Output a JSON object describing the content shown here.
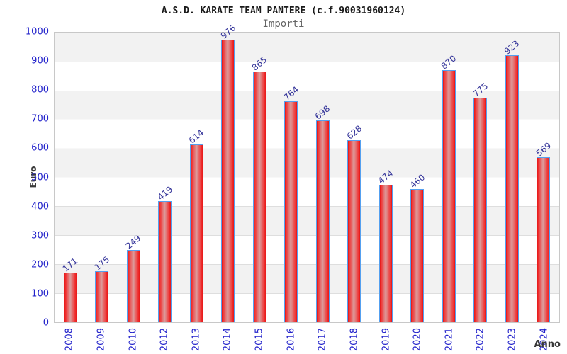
{
  "chart_data": {
    "type": "bar",
    "title": "A.S.D. KARATE TEAM PANTERE (c.f.90031960124)",
    "subtitle": "Importi",
    "xlabel": "Anno",
    "ylabel": "Euro",
    "categories": [
      "2008",
      "2009",
      "2010",
      "2012",
      "2013",
      "2014",
      "2015",
      "2016",
      "2017",
      "2018",
      "2019",
      "2020",
      "2021",
      "2022",
      "2023",
      "2024"
    ],
    "values": [
      171,
      175,
      249,
      419,
      614,
      976,
      865,
      764,
      698,
      628,
      474,
      460,
      870,
      775,
      923,
      569
    ],
    "ylim": [
      0,
      1000
    ],
    "ytick_step": 100,
    "grid": true,
    "legend_position": "none",
    "styles": {
      "title_color": "#1a1a1a",
      "subtitle_color": "#646464",
      "tick_label_color": "#2323cb",
      "value_label_color": "#35359a",
      "axis_title_color": "#3a3a3a",
      "band_color": "#f2f2f2",
      "gridline_color": "#dedede",
      "plot_border_color": "#c8c8c8",
      "bar_fill_edge": "#e51717",
      "bar_fill_mid": "#dc9d9d",
      "bar_border": "#54a0f0"
    }
  }
}
